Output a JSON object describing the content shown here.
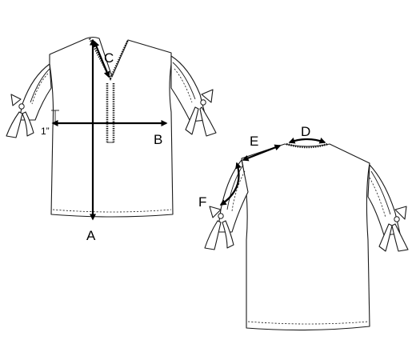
{
  "measurements": {
    "A": "A",
    "B": "B",
    "C": "C",
    "D": "D",
    "E": "E",
    "F": "F"
  },
  "sleeve_offset_note": "1”",
  "colors": {
    "line": "#1a1a1a",
    "paper": "#ffffff",
    "arrow": "#000000"
  }
}
